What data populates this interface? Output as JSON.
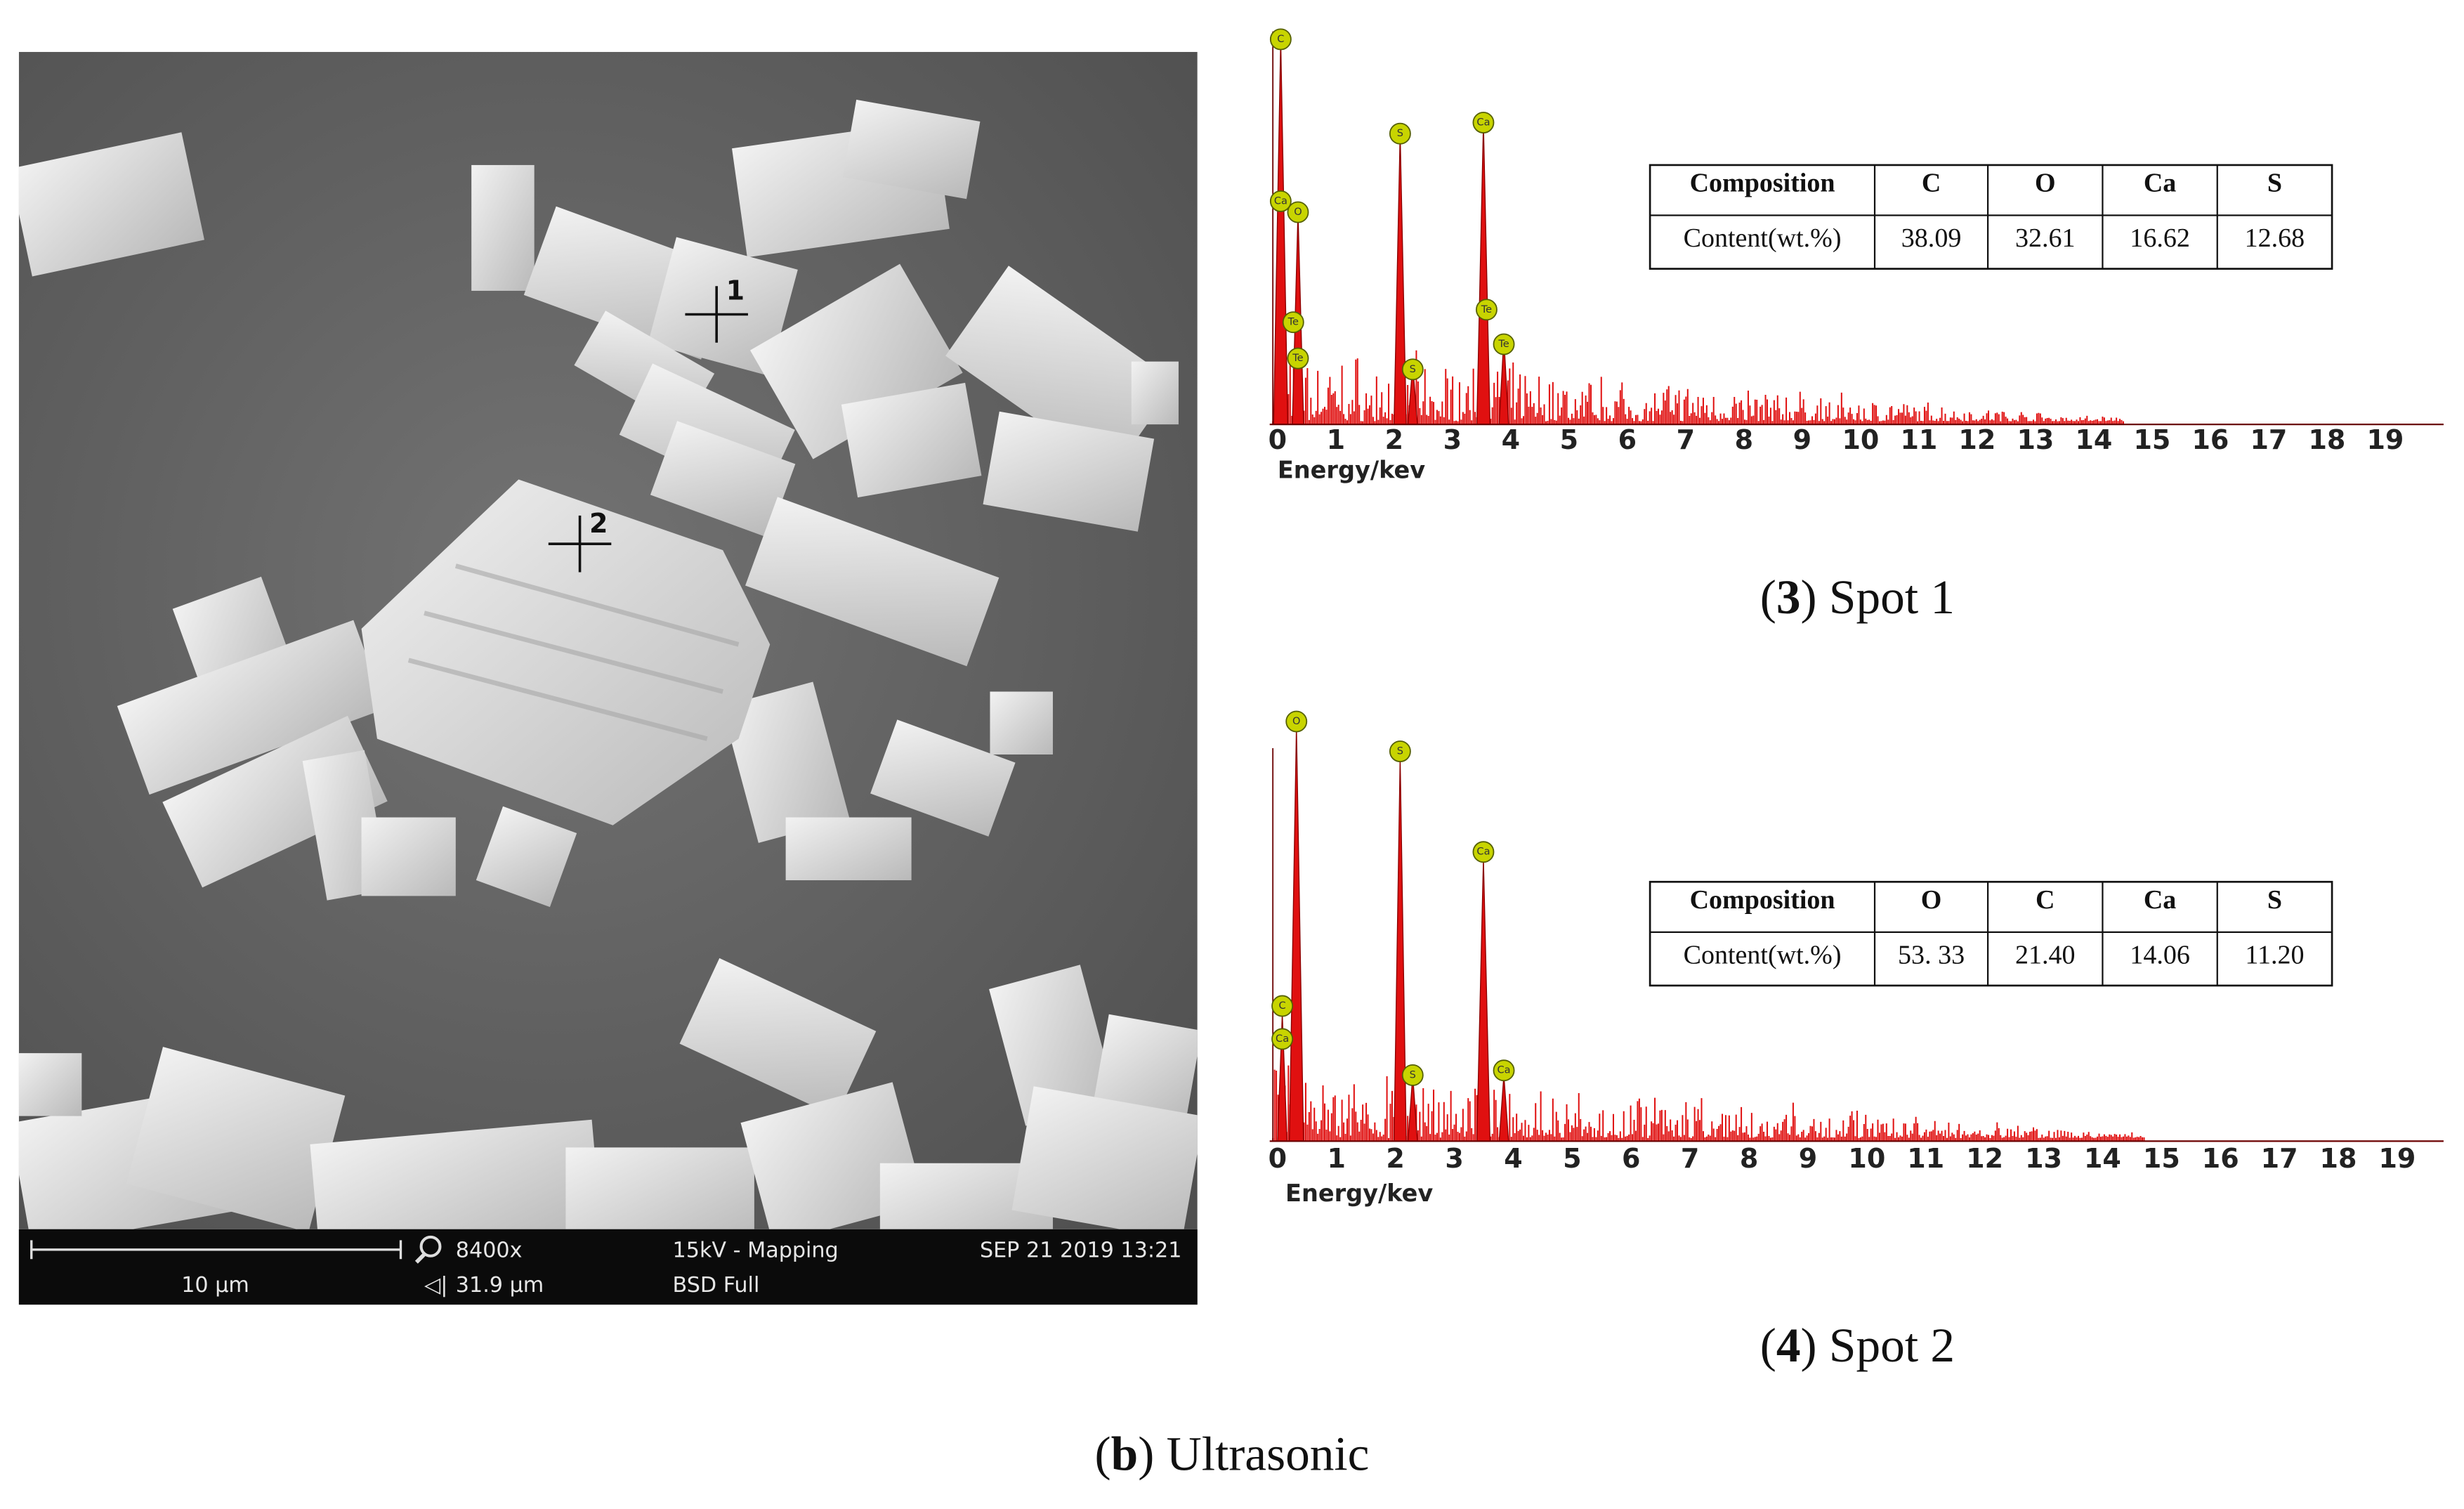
{
  "sem_image": {
    "markers": [
      "1",
      "2"
    ],
    "scale_bar": "10 μm",
    "magnification": "8400x",
    "field_width": "31.9 μm",
    "mode": "15kV - Mapping",
    "detector": "BSD Full",
    "timestamp": "SEP 21 2019 13:21"
  },
  "spectra": [
    {
      "peaks": [
        "C",
        "Ca",
        "O",
        "Te",
        "Te",
        "S",
        "S",
        "Ca",
        "Te",
        "Te"
      ],
      "axis_ticks": [
        0,
        1,
        2,
        3,
        4,
        5,
        6,
        7,
        8,
        9,
        10,
        11,
        12,
        13,
        14,
        15,
        16,
        17,
        18,
        19
      ],
      "axis_label": "Energy/kev",
      "table": {
        "header": [
          "Composition",
          "C",
          "O",
          "Ca",
          "S"
        ],
        "row": [
          "Content(wt.%)",
          "38.09",
          "32.61",
          "16.62",
          "12.68"
        ]
      },
      "caption": [
        "(",
        "3",
        ") Spot 1"
      ]
    },
    {
      "peaks": [
        "O",
        "S",
        "Ca",
        "C",
        "Ca",
        "S",
        "Ca"
      ],
      "axis_ticks": [
        0,
        1,
        2,
        3,
        4,
        5,
        6,
        7,
        8,
        9,
        10,
        11,
        12,
        13,
        14,
        15,
        16,
        17,
        18,
        19
      ],
      "axis_label": "Energy/kev",
      "table": {
        "header": [
          "Composition",
          "O",
          "C",
          "Ca",
          "S"
        ],
        "row": [
          "Content(wt.%)",
          "53. 33",
          "21.40",
          "14.06",
          "11.20"
        ]
      },
      "caption": [
        "(",
        "4",
        ") Spot 2"
      ]
    }
  ],
  "caption": [
    "(",
    "b",
    ") Ultrasonic"
  ]
}
